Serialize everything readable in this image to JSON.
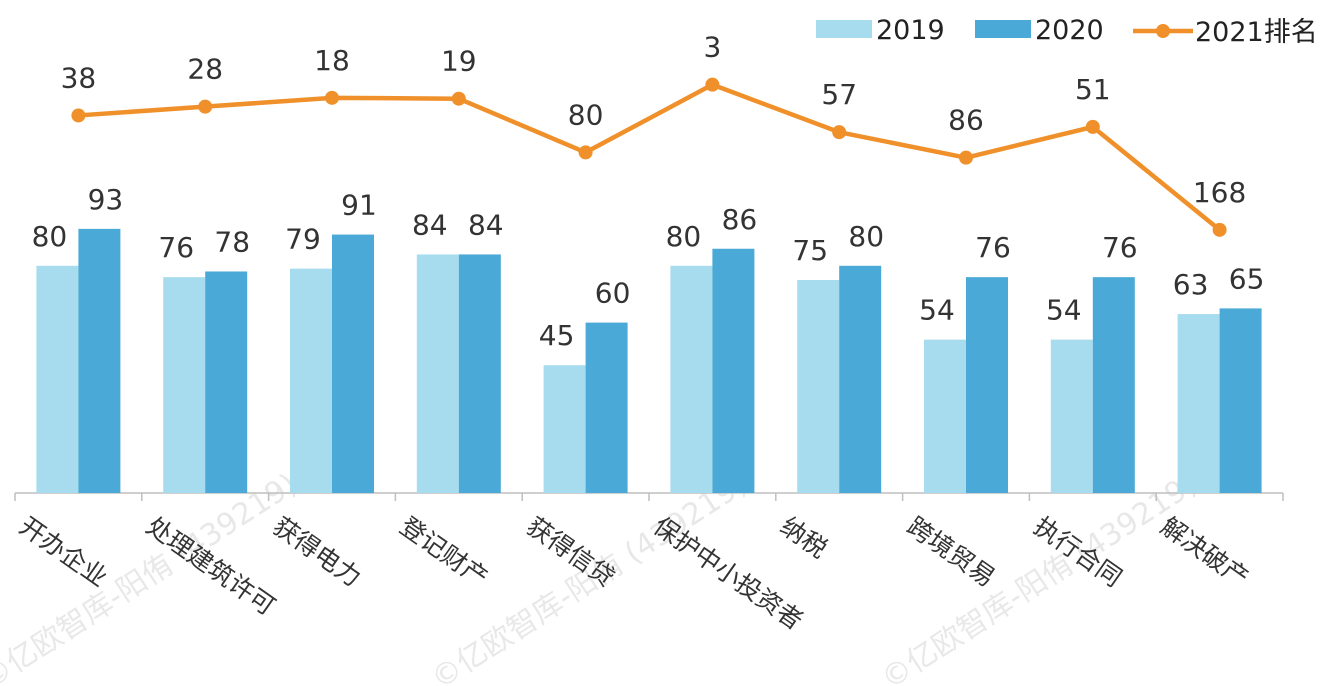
{
  "chart_data": {
    "type": "bar",
    "categories": [
      "开办企业",
      "处理建筑许可",
      "获得电力",
      "登记财产",
      "获得信贷",
      "保护中小投资者",
      "纳税",
      "跨境贸易",
      "执行合同",
      "解决破产"
    ],
    "series": [
      {
        "name": "2019",
        "type": "bar",
        "color": "#a6dcee",
        "values": [
          80,
          76,
          79,
          84,
          45,
          80,
          75,
          54,
          54,
          63
        ]
      },
      {
        "name": "2020",
        "type": "bar",
        "color": "#4aa9d6",
        "values": [
          93,
          78,
          91,
          84,
          60,
          86,
          80,
          76,
          76,
          65
        ]
      },
      {
        "name": "2021排名",
        "type": "line",
        "color": "#f0902a",
        "values": [
          38,
          28,
          18,
          19,
          80,
          3,
          57,
          86,
          51,
          168
        ]
      }
    ],
    "title": "",
    "xlabel": "",
    "ylabel": "",
    "grid": false,
    "legend_position": "top-right",
    "watermark": "©亿欧智库-阳侑 (439219)"
  }
}
